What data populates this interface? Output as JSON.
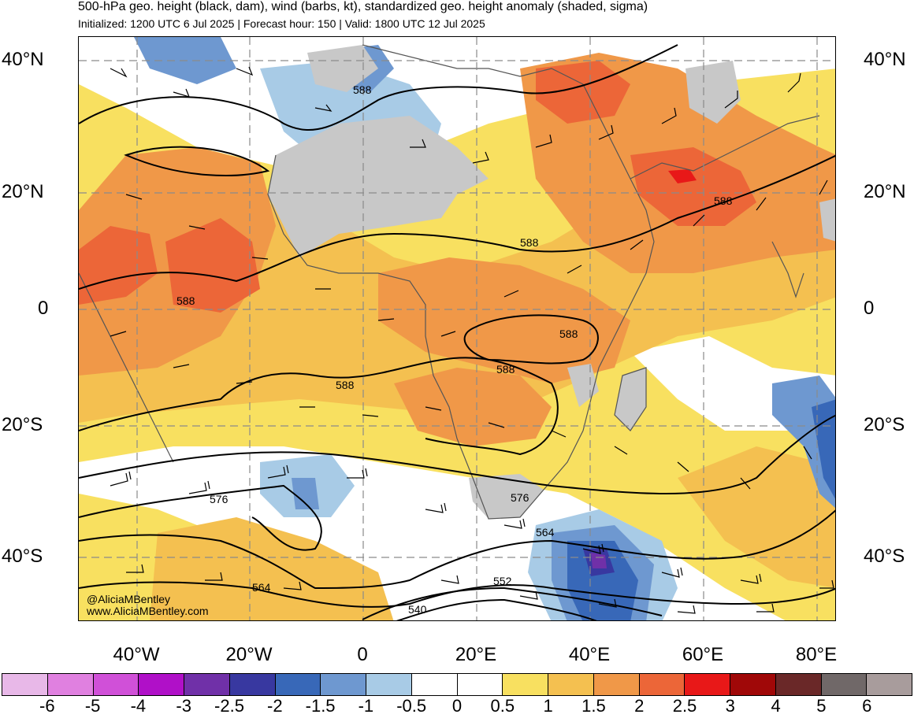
{
  "header": {
    "title": "500-hPa geo. height (black, dam), wind (barbs, kt), standardized geo. height anomaly (shaded, sigma)",
    "subtitle": "Initialized: 1200 UTC 6 Jul 2025 | Forecast hour: 150 | Valid: 1800 UTC 12 Jul 2025"
  },
  "axes": {
    "lat_labels": [
      "40°N",
      "20°N",
      "0",
      "20°S",
      "40°S"
    ],
    "lon_labels": [
      "40°W",
      "20°W",
      "0",
      "20°E",
      "40°E",
      "60°E",
      "80°E"
    ]
  },
  "contour_labels": [
    "588",
    "588",
    "588",
    "588",
    "588",
    "588",
    "576",
    "576",
    "564",
    "564",
    "552",
    "540"
  ],
  "credits": {
    "handle": "@AliciaMBentley",
    "website": "www.AliciaMBentley.com"
  },
  "colorbar": {
    "labels": [
      "-6",
      "-5",
      "-4",
      "-3",
      "-2.5",
      "-2",
      "-1.5",
      "-1",
      "-0.5",
      "0",
      "0.5",
      "1",
      "1.5",
      "2",
      "2.5",
      "3",
      "4",
      "5",
      "6"
    ],
    "colors": [
      "#e8b8e8",
      "#e080e0",
      "#d050d8",
      "#b010c8",
      "#7030a8",
      "#3838a0",
      "#3868b8",
      "#6e98d0",
      "#a8cbe6",
      "#ffffff",
      "#ffffff",
      "#f8e060",
      "#f4c050",
      "#f09848",
      "#ec6638",
      "#e81818",
      "#a00808",
      "#6a2828",
      "#706868",
      "#a89c9c"
    ]
  },
  "legend_colors": {
    "land_masked": "#c8c8c8",
    "coastline": "#555555"
  }
}
